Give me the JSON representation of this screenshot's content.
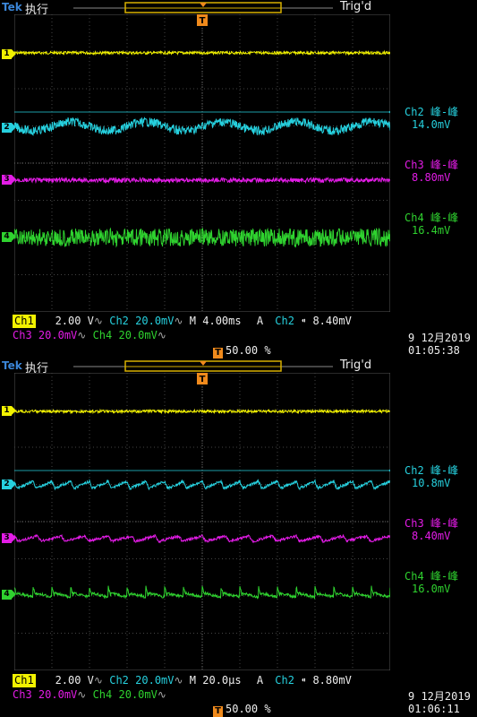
{
  "screens": [
    {
      "header": {
        "brand": "Tek",
        "mode": "执行",
        "trigger_status": "Trig'd"
      },
      "channels": [
        {
          "id": "1",
          "color": "#f2f200",
          "kind": "flat",
          "noise": 1.5
        },
        {
          "id": "2",
          "color": "#26d0de",
          "kind": "sine",
          "noise": 5,
          "amplitude": 5,
          "cycles": 5
        },
        {
          "id": "3",
          "color": "#e31ce6",
          "kind": "flat",
          "noise": 2.5
        },
        {
          "id": "4",
          "color": "#2fd22f",
          "kind": "flat",
          "noise": 10
        }
      ],
      "measurements": [
        {
          "name": "Ch2 峰-峰",
          "value": "14.0mV",
          "color": "#26d0de"
        },
        {
          "name": "Ch3 峰-峰",
          "value": "8.80mV",
          "color": "#e31ce6"
        },
        {
          "name": "Ch4 峰-峰",
          "value": "16.4mV",
          "color": "#2fd22f"
        }
      ],
      "status": {
        "ch1_label": "Ch1",
        "ch1_scale": "2.00 V",
        "ch2_label": "Ch2",
        "ch2_scale": "20.0mV",
        "timebase": "M 4.00ms",
        "trig_mode": "A",
        "trig_source": "Ch2",
        "trig_level": "8.40mV",
        "ch3_label": "Ch3",
        "ch3_scale": "20.0mV",
        "ch4_label": "Ch4",
        "ch4_scale": "20.0mV",
        "trigger_position": "50.00 %",
        "date": "9 12月2019",
        "time": "01:05:38"
      }
    },
    {
      "header": {
        "brand": "Tek",
        "mode": "执行",
        "trigger_status": "Trig'd"
      },
      "channels": [
        {
          "id": "1",
          "color": "#f2f200",
          "kind": "flat",
          "noise": 1.5
        },
        {
          "id": "2",
          "color": "#26d0de",
          "kind": "sawtooth",
          "noise": 1.5,
          "amplitude": 4,
          "cycles": 20
        },
        {
          "id": "3",
          "color": "#e31ce6",
          "kind": "sawtooth",
          "noise": 1.5,
          "amplitude": 3,
          "cycles": 16
        },
        {
          "id": "4",
          "color": "#2fd22f",
          "kind": "spike",
          "noise": 1.5,
          "amplitude": 9,
          "cycles": 20
        }
      ],
      "measurements": [
        {
          "name": "Ch2 峰-峰",
          "value": "10.8mV",
          "color": "#26d0de"
        },
        {
          "name": "Ch3 峰-峰",
          "value": "8.40mV",
          "color": "#e31ce6"
        },
        {
          "name": "Ch4 峰-峰",
          "value": "16.0mV",
          "color": "#2fd22f"
        }
      ],
      "status": {
        "ch1_label": "Ch1",
        "ch1_scale": "2.00 V",
        "ch2_label": "Ch2",
        "ch2_scale": "20.0mV",
        "timebase": "M 20.0µs",
        "trig_mode": "A",
        "trig_source": "Ch2",
        "trig_level": "8.80mV",
        "ch3_label": "Ch3",
        "ch3_scale": "20.0mV",
        "ch4_label": "Ch4",
        "ch4_scale": "20.0mV",
        "trigger_position": "50.00 %",
        "date": "9 12月2019",
        "time": "01:06:11"
      }
    }
  ]
}
